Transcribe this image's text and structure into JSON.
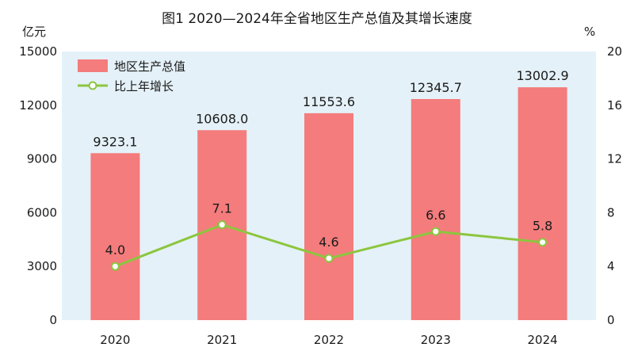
{
  "chart_data": {
    "type": "bar+line",
    "title": "图1  2020—2024年全省地区生产总值及其增长速度",
    "left_unit": "亿元",
    "right_unit": "%",
    "categories": [
      "2020",
      "2021",
      "2022",
      "2023",
      "2024"
    ],
    "left_axis": {
      "min": 0,
      "max": 15000,
      "ticks": [
        0,
        3000,
        6000,
        9000,
        12000,
        15000
      ]
    },
    "right_axis": {
      "min": 0,
      "max": 20,
      "ticks": [
        0,
        4,
        8,
        12,
        16,
        20
      ]
    },
    "series": [
      {
        "name": "地区生产总值",
        "type": "bar",
        "axis": "left",
        "color": "#f47c7c",
        "values": [
          9323.1,
          10608.0,
          11553.6,
          12345.7,
          13002.9
        ],
        "labels": [
          "9323.1",
          "10608.0",
          "11553.6",
          "12345.7",
          "13002.9"
        ]
      },
      {
        "name": "比上年增长",
        "type": "line",
        "axis": "right",
        "color": "#8cc63f",
        "values": [
          4.0,
          7.1,
          4.6,
          6.6,
          5.8
        ],
        "labels": [
          "4.0",
          "7.1",
          "4.6",
          "6.6",
          "5.8"
        ]
      }
    ],
    "legend_position": "top-left",
    "grid": false,
    "plot_background": "#e4f1f8"
  }
}
